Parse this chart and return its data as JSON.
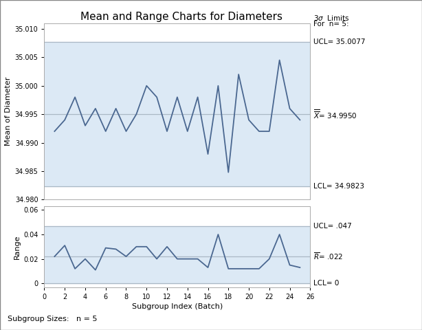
{
  "title": "Mean and Range Charts for Diameters",
  "xlabel": "Subgroup Index (Batch)",
  "ylabel_top": "Mean of Diameter",
  "ylabel_bot": "Range",
  "footnote": "Subgroup Sizes:   n = 5",
  "n": 5,
  "xbar_ucl": 35.0077,
  "xbar_cl": 34.995,
  "xbar_lcl": 34.9823,
  "r_ucl": 0.047,
  "r_cl": 0.022,
  "r_lcl": 0,
  "subgroup_x": [
    1,
    2,
    3,
    4,
    5,
    6,
    7,
    8,
    9,
    10,
    11,
    12,
    13,
    14,
    15,
    16,
    17,
    18,
    19,
    20,
    21,
    22,
    23,
    24,
    25
  ],
  "xbar_values": [
    34.992,
    34.994,
    34.998,
    34.993,
    34.996,
    34.992,
    34.996,
    34.992,
    34.995,
    35.0,
    34.998,
    34.992,
    34.998,
    34.992,
    34.998,
    34.988,
    35.0,
    34.9848,
    35.002,
    34.994,
    34.992,
    34.992,
    35.0045,
    34.996,
    34.994
  ],
  "r_values": [
    0.022,
    0.031,
    0.012,
    0.02,
    0.011,
    0.029,
    0.028,
    0.022,
    0.03,
    0.03,
    0.02,
    0.03,
    0.02,
    0.02,
    0.02,
    0.013,
    0.04,
    0.012,
    0.012,
    0.012,
    0.012,
    0.02,
    0.04,
    0.015,
    0.013
  ],
  "bg_color": "#dce9f5",
  "line_color": "#4a6790",
  "control_line_color": "#aab8c5",
  "spine_color": "#aaaaaa",
  "font_family": "DejaVu Sans",
  "font_size_title": 11,
  "font_size_label": 8,
  "font_size_tick": 7,
  "font_size_annot": 8
}
